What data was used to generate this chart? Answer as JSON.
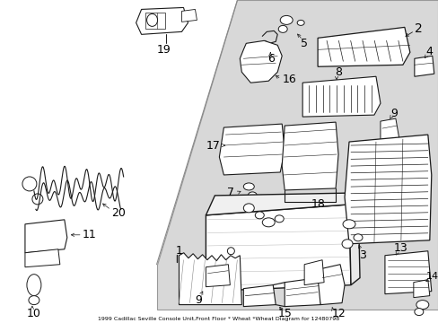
{
  "title": "1999 Cadillac Seville Console Unit,Front Floor * Wheat *Wheat Diagram for 12480798",
  "bg_color": "#ffffff",
  "hatch_bg": "#d4d4d4",
  "fig_width": 4.89,
  "fig_height": 3.6,
  "dpi": 100,
  "line_color": "#1a1a1a",
  "label_fontsize": 9,
  "footer_text": "1999 Cadillac Seville Console Unit,Front Floor * Wheat *Wheat Diagram for 12480798"
}
